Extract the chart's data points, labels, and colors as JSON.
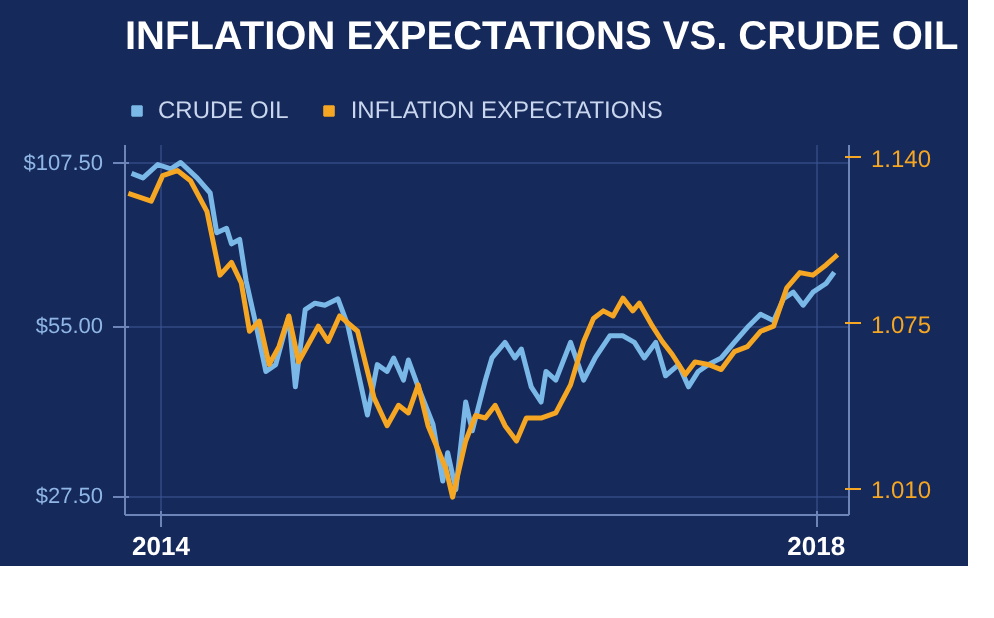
{
  "chart_data": {
    "type": "line",
    "title": "INFLATION EXPECTATIONS VS. CRUDE OIL",
    "log": "y",
    "grid": true,
    "legend": "top left",
    "line_style": "solid",
    "marker": "none",
    "xlim": [
      2013.78,
      2018.2
    ],
    "xticks": [
      2014,
      2018
    ],
    "ylim": [
      25.5,
      116
    ],
    "yticks": [
      {
        "value": 27.5,
        "label": "$27.50"
      },
      {
        "value": 55,
        "label": "$55.00"
      },
      {
        "value": 107.5,
        "label": "$107.50"
      }
    ],
    "y2lim": [
      1.0,
      1.145
    ],
    "y2ticks": [
      {
        "value": 1.01,
        "label": "1.010"
      },
      {
        "value": 1.075,
        "label": "1.075"
      },
      {
        "value": 1.14,
        "label": "1.140"
      }
    ],
    "series": [
      {
        "name": "CRUDE OIL",
        "color": "#7ab8e8",
        "x": [
          2013.82,
          2013.89,
          2013.98,
          2014.06,
          2014.12,
          2014.22,
          2014.3,
          2014.34,
          2014.4,
          2014.43,
          2014.48,
          2014.52,
          2014.58,
          2014.64,
          2014.7,
          2014.78,
          2014.82,
          2014.88,
          2014.94,
          2015.0,
          2015.08,
          2015.14,
          2015.26,
          2015.32,
          2015.38,
          2015.42,
          2015.48,
          2015.51,
          2015.57,
          2015.66,
          2015.72,
          2015.75,
          2015.8,
          2015.86,
          2015.9,
          2015.98,
          2016.02,
          2016.1,
          2016.16,
          2016.2,
          2016.26,
          2016.32,
          2016.35,
          2016.41,
          2016.5,
          2016.58,
          2016.65,
          2016.74,
          2016.82,
          2016.89,
          2016.95,
          2017.02,
          2017.08,
          2017.16,
          2017.22,
          2017.28,
          2017.34,
          2017.42,
          2017.5,
          2017.58,
          2017.66,
          2017.74,
          2017.8,
          2017.86,
          2017.92,
          2017.98,
          2018.06,
          2018.11
        ],
        "values": [
          103.3,
          101.4,
          107.1,
          105.2,
          108.0,
          101.4,
          95.3,
          81.0,
          82.5,
          77.4,
          78.8,
          66.4,
          55.5,
          45.9,
          47.2,
          57.5,
          43.1,
          59.1,
          60.7,
          60.2,
          61.8,
          55.5,
          38.4,
          47.2,
          45.9,
          48.5,
          44.3,
          48.1,
          43.1,
          37.0,
          29.3,
          32.9,
          28.3,
          40.5,
          36.0,
          44.3,
          48.5,
          51.7,
          48.5,
          50.3,
          43.1,
          40.5,
          45.9,
          44.3,
          51.7,
          44.3,
          48.5,
          53.1,
          53.1,
          51.7,
          48.5,
          51.7,
          45.1,
          47.2,
          43.1,
          45.9,
          47.2,
          48.5,
          51.7,
          55.0,
          58.0,
          56.5,
          61.8,
          63.5,
          60.2,
          63.5,
          65.8,
          68.9
        ]
      },
      {
        "name": "INFLATION EXPECTATIONS",
        "color": "#f5a623",
        "axis": "y2",
        "x": [
          2013.8,
          2013.94,
          2014.01,
          2014.1,
          2014.18,
          2014.28,
          2014.36,
          2014.43,
          2014.49,
          2014.54,
          2014.6,
          2014.66,
          2014.72,
          2014.78,
          2014.84,
          2014.9,
          2014.96,
          2015.02,
          2015.09,
          2015.2,
          2015.3,
          2015.38,
          2015.45,
          2015.51,
          2015.57,
          2015.63,
          2015.74,
          2015.78,
          2015.86,
          2015.92,
          2015.98,
          2016.04,
          2016.1,
          2016.17,
          2016.23,
          2016.32,
          2016.41,
          2016.5,
          2016.58,
          2016.64,
          2016.7,
          2016.76,
          2016.82,
          2016.88,
          2016.92,
          2017.0,
          2017.06,
          2017.12,
          2017.2,
          2017.26,
          2017.34,
          2017.42,
          2017.5,
          2017.58,
          2017.66,
          2017.74,
          2017.82,
          2017.9,
          2017.98,
          2018.06,
          2018.13
        ],
        "values": [
          1.126,
          1.123,
          1.133,
          1.135,
          1.131,
          1.119,
          1.094,
          1.099,
          1.091,
          1.072,
          1.076,
          1.059,
          1.066,
          1.078,
          1.06,
          1.067,
          1.074,
          1.068,
          1.078,
          1.072,
          1.046,
          1.035,
          1.043,
          1.04,
          1.051,
          1.035,
          1.018,
          1.007,
          1.029,
          1.039,
          1.038,
          1.043,
          1.035,
          1.029,
          1.038,
          1.038,
          1.04,
          1.051,
          1.068,
          1.077,
          1.08,
          1.078,
          1.085,
          1.08,
          1.083,
          1.074,
          1.068,
          1.063,
          1.055,
          1.06,
          1.059,
          1.057,
          1.064,
          1.066,
          1.072,
          1.074,
          1.089,
          1.095,
          1.094,
          1.098,
          1.102
        ]
      }
    ]
  }
}
